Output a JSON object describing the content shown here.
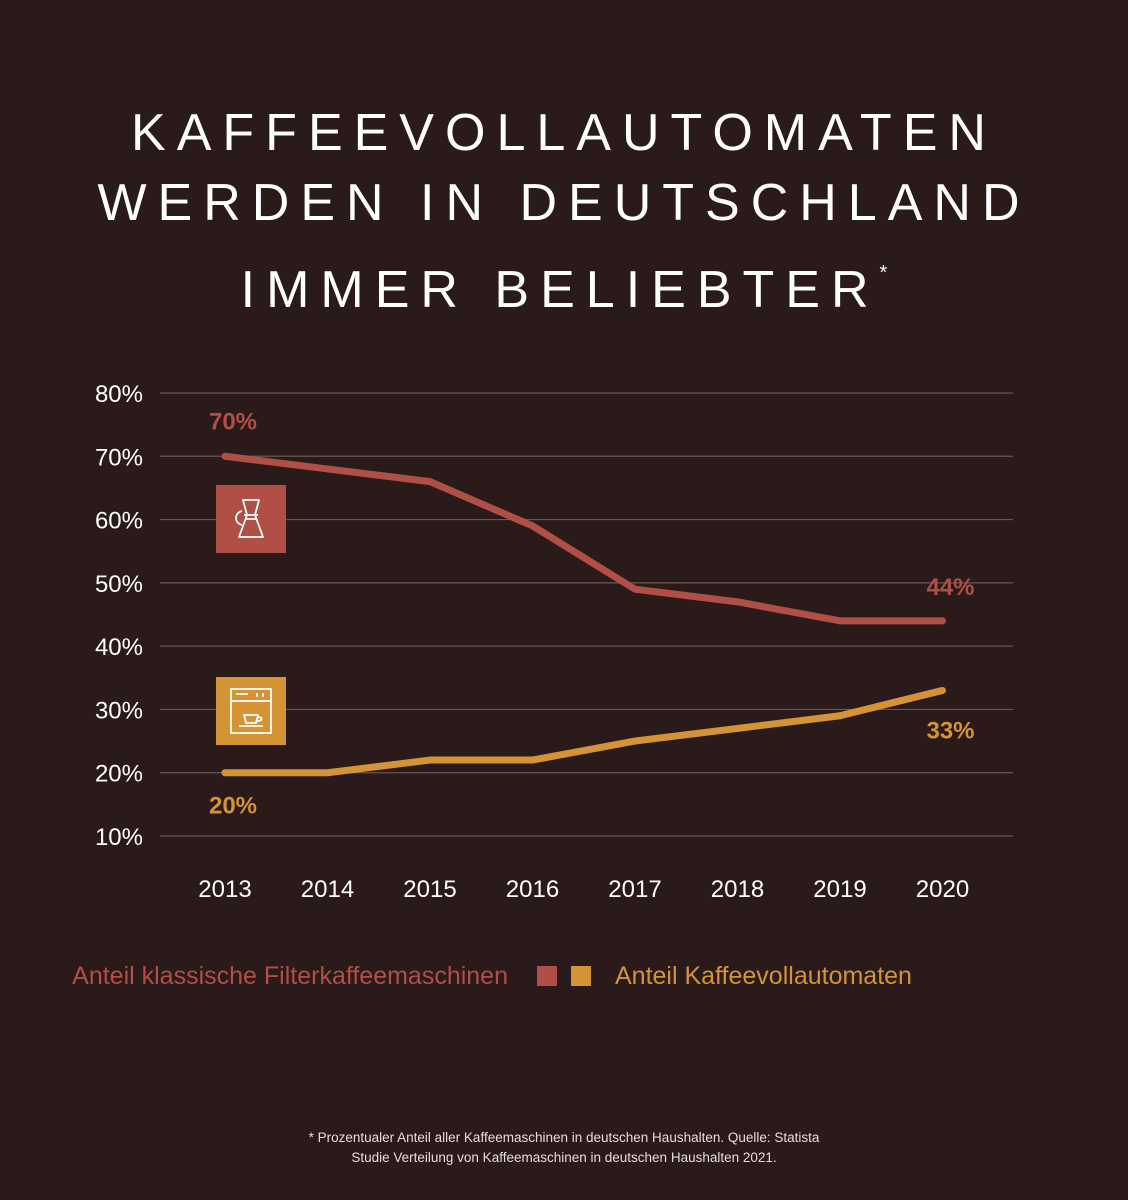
{
  "title": {
    "line1": "KAFFEEVOLLAUTOMATEN",
    "line2": "WERDEN IN DEUTSCHLAND",
    "line3": "IMMER BELIEBTER",
    "mark": "*"
  },
  "chart_data": {
    "type": "line",
    "categories": [
      "2013",
      "2014",
      "2015",
      "2016",
      "2017",
      "2018",
      "2019",
      "2020"
    ],
    "ylim": [
      10,
      80
    ],
    "yticks": [
      "10%",
      "20%",
      "30%",
      "40%",
      "50%",
      "60%",
      "70%",
      "80%"
    ],
    "grid": true,
    "legend_position": "bottom",
    "series": [
      {
        "name": "Anteil klassische Filterkaffeemaschinen",
        "color": "#b04f45",
        "icon": "chemex-coffee-maker-icon",
        "values": [
          70,
          68,
          66,
          59,
          49,
          47,
          44,
          44
        ],
        "labels": [
          {
            "category": "2013",
            "text": "70%",
            "value": 70
          },
          {
            "category": "2020",
            "text": "44%",
            "value": 44
          }
        ]
      },
      {
        "name": "Anteil Kaffeevollautomaten",
        "color": "#d49436",
        "icon": "espresso-machine-icon",
        "values": [
          20,
          20,
          22,
          22,
          25,
          27,
          29,
          33
        ],
        "labels": [
          {
            "category": "2013",
            "text": "20%",
            "value": 20
          },
          {
            "category": "2020",
            "text": "33%",
            "value": 33
          }
        ]
      }
    ]
  },
  "legend": {
    "filter_label": "Anteil klassische Filterkaffeemaschinen",
    "auto_label": "Anteil Kaffeevollautomaten"
  },
  "footnote": {
    "line1": "* Prozentualer Anteil aller Kaffeemaschinen in deutschen Haushalten. Quelle: Statista",
    "line2": "Studie Verteilung von Kaffeemaschinen in deutschen Haushalten 2021."
  }
}
